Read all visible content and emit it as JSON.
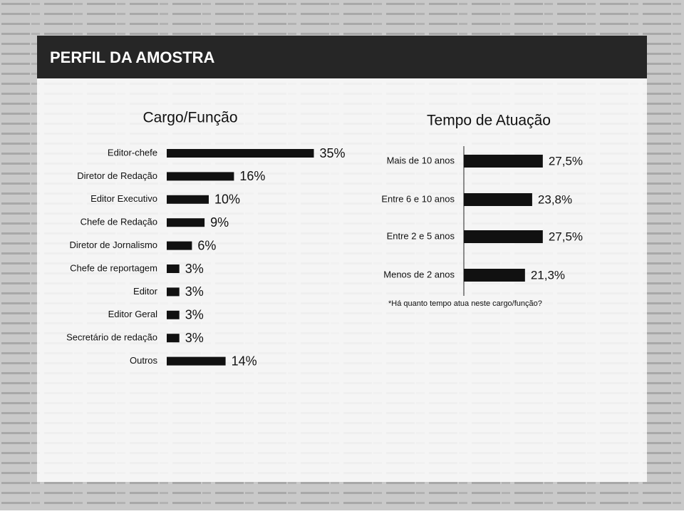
{
  "header": {
    "title": "PERFIL DA AMOSTRA"
  },
  "chart_data": [
    {
      "type": "bar",
      "orientation": "horizontal",
      "title": "Cargo/Função",
      "categories": [
        "Editor-chefe",
        "Diretor de Redação",
        "Editor Executivo",
        "Chefe de Redação",
        "Diretor de Jornalismo",
        "Chefe de reportagem",
        "Editor",
        "Editor Geral",
        "Secretário de redação",
        "Outros"
      ],
      "values": [
        35,
        16,
        10,
        9,
        6,
        3,
        3,
        3,
        3,
        14
      ],
      "value_labels": [
        "35%",
        "16%",
        "10%",
        "9%",
        "6%",
        "3%",
        "3%",
        "3%",
        "3%",
        "14%"
      ],
      "color": "#111111"
    },
    {
      "type": "bar",
      "orientation": "horizontal",
      "title": "Tempo de Atuação",
      "categories": [
        "Mais de 10 anos",
        "Entre 6 e 10 anos",
        "Entre 2 e 5 anos",
        "Menos de 2 anos"
      ],
      "values": [
        27.5,
        23.8,
        27.5,
        21.3
      ],
      "value_labels": [
        "27,5%",
        "23,8%",
        "27,5%",
        "21,3%"
      ],
      "color": "#111111",
      "note": "*Há quanto tempo atua neste cargo/função?"
    }
  ]
}
